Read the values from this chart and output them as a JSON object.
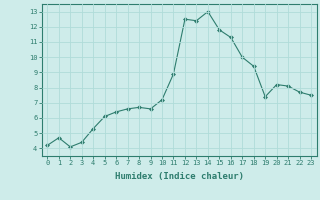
{
  "x": [
    0,
    1,
    2,
    3,
    4,
    5,
    6,
    7,
    8,
    9,
    10,
    11,
    12,
    13,
    14,
    15,
    16,
    17,
    18,
    19,
    20,
    21,
    22,
    23
  ],
  "y": [
    4.2,
    4.7,
    4.1,
    4.4,
    5.3,
    6.1,
    6.4,
    6.6,
    6.7,
    6.6,
    7.2,
    8.9,
    12.5,
    12.4,
    13.0,
    11.8,
    11.3,
    10.0,
    9.4,
    7.4,
    8.2,
    8.1,
    7.7,
    7.5
  ],
  "line_color": "#2e7d6e",
  "marker": "D",
  "marker_size": 2.0,
  "bg_color": "#ceecea",
  "grid_color": "#b0dcd9",
  "xlabel": "Humidex (Indice chaleur)",
  "ylim": [
    3.5,
    13.5
  ],
  "xlim": [
    -0.5,
    23.5
  ],
  "yticks": [
    4,
    5,
    6,
    7,
    8,
    9,
    10,
    11,
    12,
    13
  ],
  "xticks": [
    0,
    1,
    2,
    3,
    4,
    5,
    6,
    7,
    8,
    9,
    10,
    11,
    12,
    13,
    14,
    15,
    16,
    17,
    18,
    19,
    20,
    21,
    22,
    23
  ],
  "tick_color": "#2e7d6e",
  "label_color": "#2e7d6e",
  "spine_color": "#2e7d6e",
  "tick_fontsize": 5.0,
  "xlabel_fontsize": 6.5
}
